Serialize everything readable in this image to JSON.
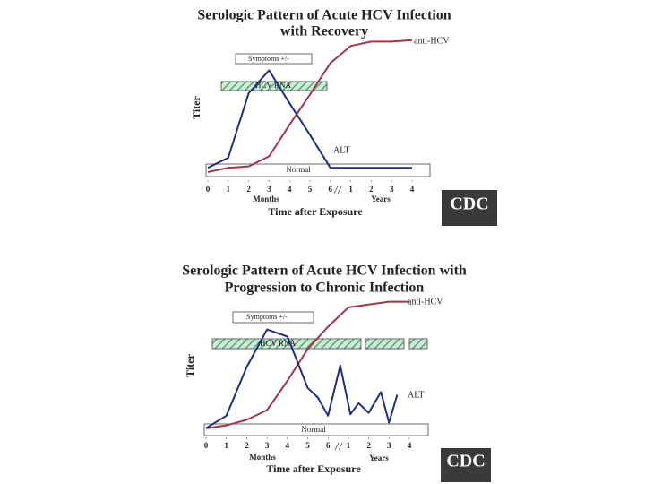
{
  "chart_data": [
    {
      "type": "line",
      "title": [
        "Serologic Pattern of Acute HCV Infection",
        "with Recovery"
      ],
      "ylabel": "Titer",
      "xlabel": "Time after Exposure",
      "annotations": {
        "symptoms": "Symptoms +/-",
        "hcv_rna": "HCV RNA",
        "normal": "Normal",
        "months": "Months",
        "years": "Years"
      },
      "logo": "CDC",
      "xlim": [
        0,
        10
      ],
      "ylim": [
        0,
        100
      ],
      "xticks": [
        0,
        1,
        2,
        3,
        4,
        5,
        6,
        {
          "value": 7,
          "label": "1"
        },
        {
          "value": 8,
          "label": "2"
        },
        {
          "value": 9,
          "label": "3"
        },
        {
          "value": 10,
          "label": "4"
        }
      ],
      "series": [
        {
          "name": "anti-HCV",
          "color": "#a3344c",
          "x": [
            0,
            1,
            2,
            3,
            4,
            5,
            6,
            7,
            8,
            9,
            10
          ],
          "values": [
            5,
            8,
            9,
            16,
            38,
            59,
            81,
            93,
            96,
            96,
            97
          ]
        },
        {
          "name": "ALT",
          "color": "#1f2c80",
          "x": [
            0,
            1,
            2,
            3,
            4,
            5,
            6,
            7,
            8,
            9,
            10
          ],
          "values": [
            8,
            15,
            60,
            76,
            53,
            31,
            8,
            8,
            8,
            8,
            8
          ]
        }
      ]
    },
    {
      "type": "line",
      "title": [
        "Serologic Pattern of Acute HCV Infection with",
        "Progression to Chronic Infection"
      ],
      "ylabel": "Titer",
      "xlabel": "Time after Exposure",
      "annotations": {
        "symptoms": "Symptoms +/-",
        "hcv_rna": "HCV RNA",
        "normal": "Normal",
        "months": "Months",
        "years": "Years"
      },
      "logo": "CDC",
      "xlim": [
        0,
        10
      ],
      "ylim": [
        0,
        100
      ],
      "xticks": [
        0,
        1,
        2,
        3,
        4,
        5,
        6,
        {
          "value": 7,
          "label": "1"
        },
        {
          "value": 8,
          "label": "2"
        },
        {
          "value": 9,
          "label": "3"
        },
        {
          "value": 10,
          "label": "4"
        }
      ],
      "series": [
        {
          "name": "anti-HCV",
          "color": "#a3344c",
          "x": [
            0,
            1,
            2,
            3,
            4,
            5,
            6,
            7,
            8,
            9,
            10
          ],
          "values": [
            6,
            8,
            12,
            19,
            40,
            63,
            79,
            93,
            95,
            97,
            97
          ]
        },
        {
          "name": "ALT",
          "color": "#1f2c80",
          "x": [
            0,
            1,
            2,
            3,
            4,
            5,
            5.5,
            6,
            6.6,
            7.1,
            7.5,
            8,
            8.6,
            9,
            9.4
          ],
          "values": [
            6,
            15,
            50,
            77,
            72,
            35,
            28,
            15,
            51,
            16,
            24,
            17,
            32,
            10,
            30
          ]
        }
      ]
    }
  ]
}
